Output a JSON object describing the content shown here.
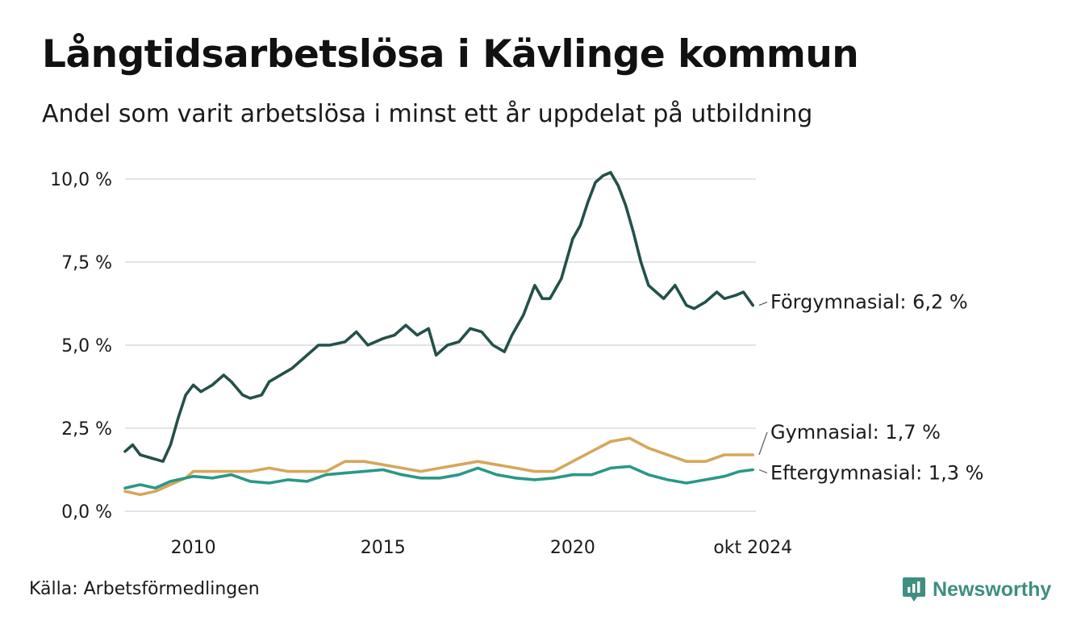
{
  "title": "Långtidsarbetslösa i Kävlinge kommun",
  "subtitle": "Andel som varit arbetslösa i minst ett år uppdelat på utbildning",
  "source": "Källa: Arbetsförmedlingen",
  "brand": "Newsworthy",
  "colors": {
    "Förgymnasial": "#24504a",
    "Gymnasial": "#d6a75a",
    "Eftergymnasial": "#2a9887",
    "grid": "#dcdcdc",
    "brand": "#3e8e81"
  },
  "chart_data": {
    "type": "line",
    "title": "Långtidsarbetslösa i Kävlinge kommun",
    "subtitle": "Andel som varit arbetslösa i minst ett år uppdelat på utbildning",
    "x_unit": "decimal year",
    "xlim": [
      2008.2,
      2024.83
    ],
    "ylim": [
      0,
      10
    ],
    "y_ticks": [
      0,
      2.5,
      5,
      7.5,
      10
    ],
    "y_tick_labels": [
      "0,0 %",
      "2,5 %",
      "5,0 %",
      "7,5 %",
      "10,0 %"
    ],
    "x_ticks": [
      2010,
      2015,
      2020,
      2024.75
    ],
    "x_tick_labels": [
      "2010",
      "2015",
      "2020",
      "okt 2024"
    ],
    "grid": "horizontal",
    "legend": "end-of-line labels",
    "series": [
      {
        "name": "Förgymnasial",
        "end_label": "Förgymnasial: 6,2 %",
        "x": [
          2008.2,
          2008.4,
          2008.6,
          2008.9,
          2009.2,
          2009.4,
          2009.6,
          2009.8,
          2010.0,
          2010.2,
          2010.5,
          2010.8,
          2011.0,
          2011.3,
          2011.5,
          2011.8,
          2012.0,
          2012.3,
          2012.6,
          2013.0,
          2013.3,
          2013.6,
          2014.0,
          2014.3,
          2014.6,
          2015.0,
          2015.3,
          2015.6,
          2015.9,
          2016.2,
          2016.4,
          2016.7,
          2017.0,
          2017.3,
          2017.6,
          2017.9,
          2018.2,
          2018.4,
          2018.7,
          2019.0,
          2019.2,
          2019.4,
          2019.7,
          2020.0,
          2020.2,
          2020.4,
          2020.6,
          2020.8,
          2021.0,
          2021.2,
          2021.4,
          2021.6,
          2021.8,
          2022.0,
          2022.2,
          2022.4,
          2022.7,
          2023.0,
          2023.2,
          2023.5,
          2023.8,
          2024.0,
          2024.3,
          2024.5,
          2024.75
        ],
        "values": [
          1.8,
          2.0,
          1.7,
          1.6,
          1.5,
          2.0,
          2.8,
          3.5,
          3.8,
          3.6,
          3.8,
          4.1,
          3.9,
          3.5,
          3.4,
          3.5,
          3.9,
          4.1,
          4.3,
          4.7,
          5.0,
          5.0,
          5.1,
          5.4,
          5.0,
          5.2,
          5.3,
          5.6,
          5.3,
          5.5,
          4.7,
          5.0,
          5.1,
          5.5,
          5.4,
          5.0,
          4.8,
          5.3,
          5.9,
          6.8,
          6.4,
          6.4,
          7.0,
          8.2,
          8.6,
          9.3,
          9.9,
          10.1,
          10.2,
          9.8,
          9.2,
          8.4,
          7.5,
          6.8,
          6.6,
          6.4,
          6.8,
          6.2,
          6.1,
          6.3,
          6.6,
          6.4,
          6.5,
          6.6,
          6.2
        ]
      },
      {
        "name": "Gymnasial",
        "end_label": "Gymnasial: 1,7 %",
        "x": [
          2008.2,
          2008.6,
          2009.0,
          2009.4,
          2009.8,
          2010.0,
          2010.5,
          2011.0,
          2011.5,
          2012.0,
          2012.5,
          2013.0,
          2013.5,
          2014.0,
          2014.5,
          2015.0,
          2015.5,
          2016.0,
          2016.5,
          2017.0,
          2017.5,
          2018.0,
          2018.5,
          2019.0,
          2019.5,
          2020.0,
          2020.5,
          2021.0,
          2021.5,
          2022.0,
          2022.5,
          2023.0,
          2023.5,
          2024.0,
          2024.4,
          2024.75
        ],
        "values": [
          0.6,
          0.5,
          0.6,
          0.8,
          1.0,
          1.2,
          1.2,
          1.2,
          1.2,
          1.3,
          1.2,
          1.2,
          1.2,
          1.5,
          1.5,
          1.4,
          1.3,
          1.2,
          1.3,
          1.4,
          1.5,
          1.4,
          1.3,
          1.2,
          1.2,
          1.5,
          1.8,
          2.1,
          2.2,
          1.9,
          1.7,
          1.5,
          1.5,
          1.7,
          1.7,
          1.7
        ]
      },
      {
        "name": "Eftergymnasial",
        "end_label": "Eftergymnasial: 1,3 %",
        "x": [
          2008.2,
          2008.6,
          2009.0,
          2009.4,
          2009.8,
          2010.0,
          2010.5,
          2011.0,
          2011.5,
          2012.0,
          2012.5,
          2013.0,
          2013.5,
          2014.0,
          2014.5,
          2015.0,
          2015.5,
          2016.0,
          2016.5,
          2017.0,
          2017.5,
          2018.0,
          2018.5,
          2019.0,
          2019.5,
          2020.0,
          2020.5,
          2021.0,
          2021.5,
          2022.0,
          2022.5,
          2023.0,
          2023.5,
          2024.0,
          2024.4,
          2024.75
        ],
        "values": [
          0.7,
          0.8,
          0.7,
          0.9,
          1.0,
          1.05,
          1.0,
          1.1,
          0.9,
          0.85,
          0.95,
          0.9,
          1.1,
          1.15,
          1.2,
          1.25,
          1.1,
          1.0,
          1.0,
          1.1,
          1.3,
          1.1,
          1.0,
          0.95,
          1.0,
          1.1,
          1.1,
          1.3,
          1.35,
          1.1,
          0.95,
          0.85,
          0.95,
          1.05,
          1.2,
          1.25
        ]
      }
    ]
  }
}
